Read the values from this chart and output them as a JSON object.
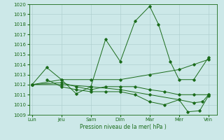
{
  "xlabel": "Pression niveau de la mer( hPa )",
  "background_color": "#cce8e8",
  "grid_color": "#aacccc",
  "line_color": "#1a6b1a",
  "ylim": [
    1009,
    1020
  ],
  "yticks": [
    1009,
    1010,
    1011,
    1012,
    1013,
    1014,
    1015,
    1016,
    1017,
    1018,
    1019,
    1020
  ],
  "day_labels": [
    "Lun",
    "Jeu",
    "Sam",
    "Dim",
    "Mar",
    "Mer",
    "Ven"
  ],
  "day_positions": [
    0,
    1,
    2,
    3,
    4,
    5,
    6
  ],
  "series": [
    {
      "x": [
        0.0,
        0.5,
        1.0,
        1.5,
        2.0,
        2.5,
        3.0,
        3.5,
        4.0,
        4.3,
        4.7,
        5.0,
        5.5,
        6.0
      ],
      "y": [
        1012.0,
        1013.7,
        1012.5,
        1011.1,
        1011.8,
        1016.5,
        1014.3,
        1018.3,
        1019.8,
        1018.0,
        1014.3,
        1012.5,
        1012.5,
        1014.7
      ]
    },
    {
      "x": [
        0.0,
        1.0,
        2.0,
        3.0,
        4.0,
        5.0,
        5.5,
        6.0
      ],
      "y": [
        1012.0,
        1012.5,
        1012.5,
        1012.5,
        1013.0,
        1013.5,
        1014.0,
        1014.5
      ]
    },
    {
      "x": [
        0.0,
        1.0,
        1.5,
        2.0,
        2.5,
        3.0,
        3.5,
        4.0,
        4.5,
        5.0,
        5.5,
        6.0
      ],
      "y": [
        1012.0,
        1012.2,
        1011.8,
        1011.5,
        1011.8,
        1011.8,
        1011.8,
        1011.5,
        1011.3,
        1011.0,
        1011.0,
        1011.0
      ]
    },
    {
      "x": [
        0.0,
        1.0,
        2.0,
        3.0,
        4.0,
        5.0,
        5.5,
        5.8,
        6.0
      ],
      "y": [
        1012.0,
        1012.0,
        1011.8,
        1011.5,
        1011.0,
        1010.5,
        1010.2,
        1010.3,
        1011.0
      ]
    },
    {
      "x": [
        0.5,
        1.0,
        1.5,
        2.0,
        2.5,
        3.0,
        3.5,
        4.0,
        4.5,
        5.0,
        5.3,
        5.7,
        6.0
      ],
      "y": [
        1012.5,
        1011.8,
        1011.5,
        1011.3,
        1011.3,
        1011.3,
        1011.0,
        1010.3,
        1010.0,
        1010.5,
        1009.3,
        1009.4,
        1010.9
      ]
    }
  ]
}
